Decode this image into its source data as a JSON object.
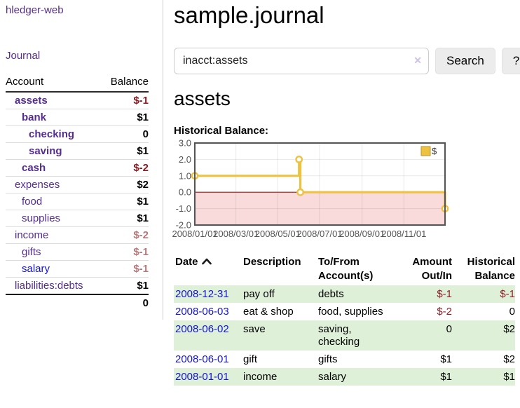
{
  "app": {
    "title": "hledger-web",
    "nav_journal": "Journal"
  },
  "colors": {
    "link_purple": "#552d90",
    "link_blue": "#1414d6",
    "negative_strong": "#8b1a1f",
    "negative_soft": "#b9767a",
    "register_negative": "#8e1f26",
    "row_green": "#dff0d8",
    "series_yellow": "#edc240"
  },
  "sidebar": {
    "table": {
      "headers": [
        "Account",
        "Balance"
      ],
      "rows": [
        {
          "name": "assets",
          "indent": 1,
          "bold": true,
          "balance": "$-1",
          "negative": true,
          "blue": false
        },
        {
          "name": "bank",
          "indent": 2,
          "bold": true,
          "balance": "$1",
          "negative": false,
          "blue": false
        },
        {
          "name": "checking",
          "indent": 3,
          "bold": true,
          "balance": "0",
          "negative": false,
          "blue": false
        },
        {
          "name": "saving",
          "indent": 3,
          "bold": true,
          "balance": "$1",
          "negative": false,
          "blue": false
        },
        {
          "name": "cash",
          "indent": 2,
          "bold": true,
          "balance": "$-2",
          "negative": true,
          "blue": false
        },
        {
          "name": "expenses",
          "indent": 1,
          "bold": false,
          "balance": "$2",
          "negative": false,
          "blue": false
        },
        {
          "name": "food",
          "indent": 2,
          "bold": false,
          "balance": "$1",
          "negative": false,
          "blue": false
        },
        {
          "name": "supplies",
          "indent": 2,
          "bold": false,
          "balance": "$1",
          "negative": false,
          "blue": false
        },
        {
          "name": "income",
          "indent": 1,
          "bold": false,
          "balance": "$-2",
          "negative": true,
          "blue": false
        },
        {
          "name": "gifts",
          "indent": 2,
          "bold": false,
          "balance": "$-1",
          "negative": true,
          "blue": false
        },
        {
          "name": "salary",
          "indent": 2,
          "bold": false,
          "balance": "$-1",
          "negative": true,
          "blue": true
        },
        {
          "name": "liabilities:debts",
          "indent": 1,
          "bold": false,
          "balance": "$1",
          "negative": false,
          "blue": false
        }
      ],
      "total": "0"
    }
  },
  "header": {
    "title": "sample.journal"
  },
  "search": {
    "query": "inacct:assets",
    "clear_icon": "✕",
    "button_label": "Search",
    "help_label": "?"
  },
  "main": {
    "account_title": "assets",
    "chart_label": "Historical Balance:"
  },
  "chart_data": {
    "type": "line",
    "step": true,
    "title": "Historical Balance",
    "xdomain": [
      "2008-01-01",
      "2008-12-31"
    ],
    "ylim": [
      -2,
      3
    ],
    "yticks": [
      {
        "value": 3,
        "label": "3.0"
      },
      {
        "value": 2,
        "label": "2.0"
      },
      {
        "value": 1,
        "label": "1.0"
      },
      {
        "value": 0,
        "label": "0.0"
      },
      {
        "value": -1,
        "label": "-1.0"
      },
      {
        "value": -2,
        "label": "-2.0"
      }
    ],
    "xticks": [
      {
        "date": "2008-01-01",
        "label": "2008/01/01"
      },
      {
        "date": "2008-03-01",
        "label": "2008/03/01"
      },
      {
        "date": "2008-05-01",
        "label": "2008/05/01"
      },
      {
        "date": "2008-07-01",
        "label": "2008/07/01"
      },
      {
        "date": "2008-09-01",
        "label": "2008/09/01"
      },
      {
        "date": "2008-11-01",
        "label": "2008/11/01"
      }
    ],
    "series": [
      {
        "name": "$",
        "color": "#edc240",
        "points": [
          [
            "2008-01-01",
            1
          ],
          [
            "2008-06-01",
            2
          ],
          [
            "2008-06-03",
            0
          ],
          [
            "2008-12-31",
            -1
          ]
        ]
      }
    ],
    "legend": {
      "label": "$",
      "position": "top-right"
    },
    "grid": true,
    "negative_fill": "#fadbdb",
    "zero_line_color": "#9d1515",
    "border_color": "#545454",
    "tick_label_color": "#545454"
  },
  "register": {
    "columns": [
      {
        "label": "Date",
        "align": "left",
        "sortable": true,
        "sort_icon": "chevron-up",
        "sort_direction": "asc"
      },
      {
        "label": "Description",
        "align": "left"
      },
      {
        "label": "To/From Account(s)",
        "align": "left"
      },
      {
        "label": "Amount Out/In",
        "align": "right"
      },
      {
        "label": "Historical Balance",
        "align": "right"
      }
    ],
    "rows": [
      {
        "date": "2008-12-31",
        "description": "pay off",
        "accounts": "debts",
        "amount": "$-1",
        "amount_negative": true,
        "balance": "$-1",
        "balance_negative": true
      },
      {
        "date": "2008-06-03",
        "description": "eat & shop",
        "accounts": "food, supplies",
        "amount": "$-2",
        "amount_negative": true,
        "balance": "0",
        "balance_negative": false
      },
      {
        "date": "2008-06-02",
        "description": "save",
        "accounts": "saving, checking",
        "amount": "0",
        "amount_negative": false,
        "balance": "$2",
        "balance_negative": false
      },
      {
        "date": "2008-06-01",
        "description": "gift",
        "accounts": "gifts",
        "amount": "$1",
        "amount_negative": false,
        "balance": "$2",
        "balance_negative": false
      },
      {
        "date": "2008-01-01",
        "description": "income",
        "accounts": "salary",
        "amount": "$1",
        "amount_negative": false,
        "balance": "$1",
        "balance_negative": false
      }
    ]
  }
}
